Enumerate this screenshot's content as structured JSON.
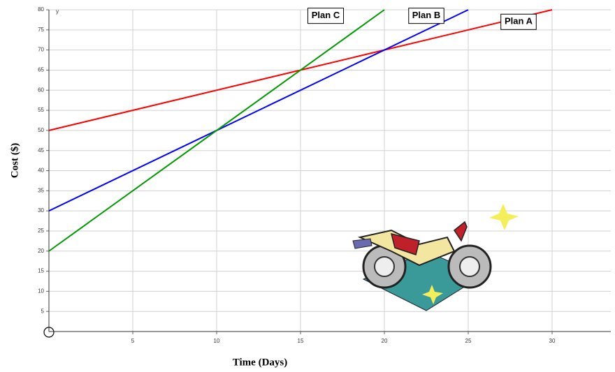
{
  "chart_data": {
    "type": "line",
    "x_label": "Time (Days)",
    "y_label": "Cost ($)",
    "axis_symbol": "y",
    "xlim": [
      0,
      33.5
    ],
    "xticks": [
      5,
      10,
      15,
      20,
      25,
      30
    ],
    "ylim": [
      0,
      80
    ],
    "yticks": [
      5,
      10,
      15,
      20,
      25,
      30,
      35,
      40,
      45,
      50,
      55,
      60,
      65,
      70,
      75,
      80
    ],
    "grid": true,
    "series": [
      {
        "name": "Plan A",
        "color": "#ff0000",
        "x": [
          0,
          30
        ],
        "values": [
          50,
          80
        ]
      },
      {
        "name": "Plan B",
        "color": "#0000ff",
        "x": [
          0,
          25
        ],
        "values": [
          30,
          80
        ]
      },
      {
        "name": "Plan C",
        "color": "#009900",
        "x": [
          0,
          20
        ],
        "values": [
          20,
          80
        ]
      }
    ]
  }
}
